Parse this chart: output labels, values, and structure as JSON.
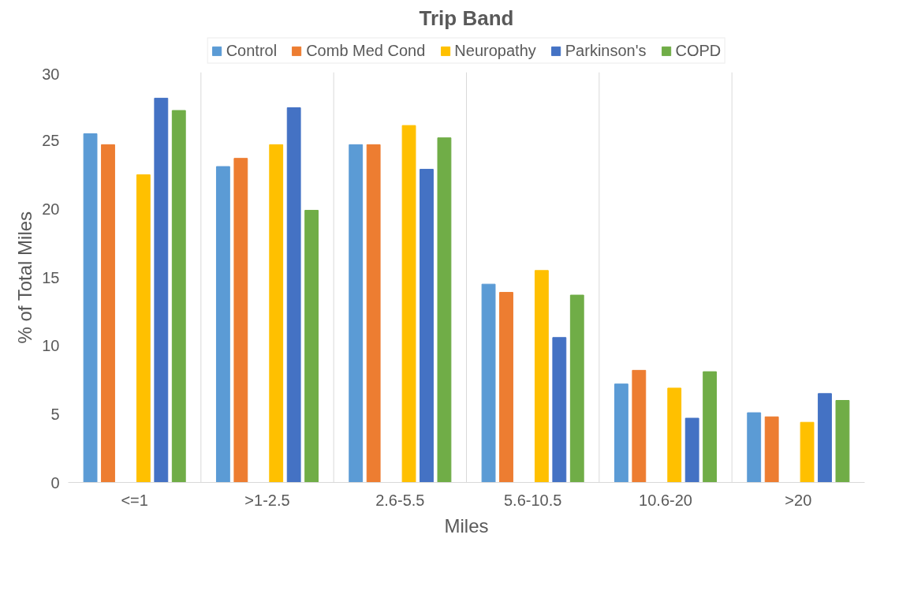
{
  "chart_data": {
    "type": "bar",
    "title": "Trip Band",
    "xlabel": "Miles",
    "ylabel": "% of Total Miles",
    "categories": [
      "<=1",
      ">1-2.5",
      "2.6-5.5",
      "5.6-10.5",
      "10.6-20",
      ">20"
    ],
    "series": [
      {
        "name": "Control",
        "color": "#5b9bd5",
        "values": [
          25.5,
          23.1,
          24.7,
          14.5,
          7.2,
          5.1
        ]
      },
      {
        "name": "Comb Med Cond",
        "color": "#ed7d31",
        "values": [
          24.7,
          23.7,
          24.7,
          13.9,
          8.2,
          4.8
        ]
      },
      {
        "name": "Neuropathy",
        "color": "#ffc000",
        "values": [
          22.5,
          24.7,
          26.1,
          15.5,
          6.9,
          4.4
        ]
      },
      {
        "name": "Parkinson's",
        "color": "#4472c4",
        "values": [
          28.1,
          27.4,
          22.9,
          10.6,
          4.7,
          6.5
        ]
      },
      {
        "name": "COPD",
        "color": "#70ad47",
        "values": [
          27.2,
          19.9,
          25.2,
          13.7,
          8.1,
          6.0
        ]
      }
    ],
    "ylim": [
      0,
      30
    ],
    "yticks": [
      0,
      5,
      10,
      15,
      20,
      25,
      30
    ],
    "grid": "x",
    "legend": "top"
  }
}
